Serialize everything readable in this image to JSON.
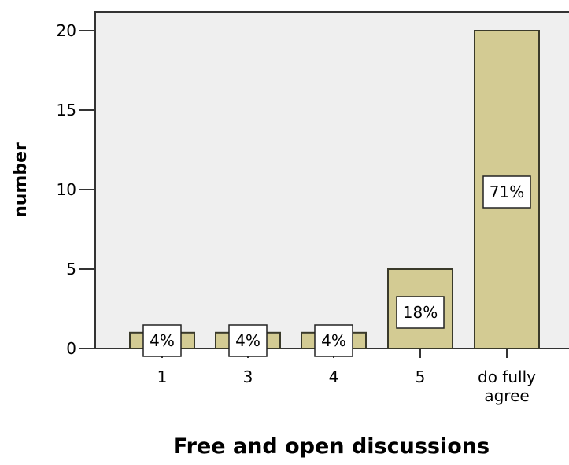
{
  "chart_data": {
    "type": "bar",
    "categories": [
      [
        "1"
      ],
      [
        "3"
      ],
      [
        "4"
      ],
      [
        "5"
      ],
      [
        "do fully",
        "agree"
      ]
    ],
    "values": [
      1,
      1,
      1,
      5,
      20
    ],
    "data_labels": [
      "4%",
      "4%",
      "4%",
      "18%",
      "71%"
    ],
    "xlabel": "Free and open discussions",
    "ylabel": "number",
    "yticks": [
      "0",
      "5",
      "10",
      "15",
      "20"
    ],
    "ytick_values": [
      0,
      5,
      10,
      15,
      20
    ],
    "ylim": [
      0,
      21.5
    ],
    "grid": false,
    "colors": {
      "bar_fill": "#d3cb93",
      "bar_stroke": "#3a3a2a",
      "plot_background": "#efefef",
      "label_box": "#ffffff"
    }
  }
}
